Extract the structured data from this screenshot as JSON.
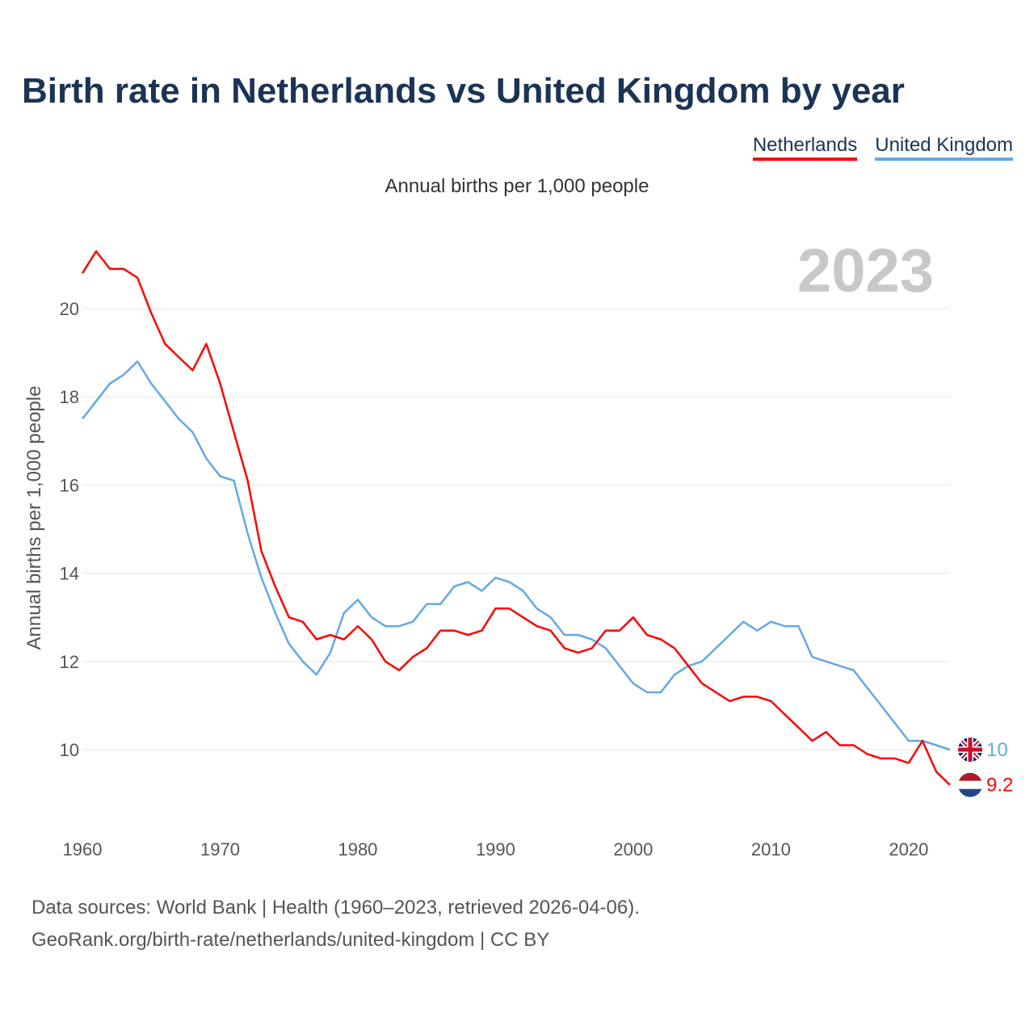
{
  "title": "Birth rate in Netherlands vs United Kingdom by year",
  "subtitle": "Annual births per 1,000 people",
  "year_label": "2023",
  "legend": [
    {
      "name": "Netherlands",
      "color": "#ff0000"
    },
    {
      "name": "United Kingdom",
      "color": "#64a8e8"
    }
  ],
  "source_line1": "Data sources: World Bank | Health (1960–2023, retrieved 2026-04-06).",
  "source_line2": "GeoRank.org/birth-rate/netherlands/united-kingdom | CC BY",
  "chart_data": {
    "type": "line",
    "title": "Birth rate in Netherlands vs United Kingdom by year",
    "xlabel": "",
    "ylabel": "Annual births per 1,000 people",
    "xlim": [
      1960,
      2023
    ],
    "ylim": [
      8.6,
      21.3
    ],
    "xticks": [
      1960,
      1970,
      1980,
      1990,
      2000,
      2010,
      2020
    ],
    "yticks": [
      10,
      12,
      14,
      16,
      18,
      20
    ],
    "grid": true,
    "legend_position": "top-right",
    "x": [
      1960,
      1961,
      1962,
      1963,
      1964,
      1965,
      1966,
      1967,
      1968,
      1969,
      1970,
      1971,
      1972,
      1973,
      1974,
      1975,
      1976,
      1977,
      1978,
      1979,
      1980,
      1981,
      1982,
      1983,
      1984,
      1985,
      1986,
      1987,
      1988,
      1989,
      1990,
      1991,
      1992,
      1993,
      1994,
      1995,
      1996,
      1997,
      1998,
      1999,
      2000,
      2001,
      2002,
      2003,
      2004,
      2005,
      2006,
      2007,
      2008,
      2009,
      2010,
      2011,
      2012,
      2013,
      2014,
      2015,
      2016,
      2017,
      2018,
      2019,
      2020,
      2021,
      2022,
      2023
    ],
    "series": [
      {
        "name": "Netherlands",
        "color": "#ff0000",
        "end_label": "9.2",
        "values": [
          20.8,
          21.3,
          20.9,
          20.9,
          20.7,
          19.9,
          19.2,
          18.9,
          18.6,
          19.2,
          18.3,
          17.2,
          16.1,
          14.5,
          13.7,
          13.0,
          12.9,
          12.5,
          12.6,
          12.5,
          12.8,
          12.5,
          12.0,
          11.8,
          12.1,
          12.3,
          12.7,
          12.7,
          12.6,
          12.7,
          13.2,
          13.2,
          13.0,
          12.8,
          12.7,
          12.3,
          12.2,
          12.3,
          12.7,
          12.7,
          13.0,
          12.6,
          12.5,
          12.3,
          11.9,
          11.5,
          11.3,
          11.1,
          11.2,
          11.2,
          11.1,
          10.8,
          10.5,
          10.2,
          10.4,
          10.1,
          10.1,
          9.9,
          9.8,
          9.8,
          9.7,
          10.2,
          9.5,
          9.2
        ]
      },
      {
        "name": "United Kingdom",
        "color": "#64a8e8",
        "end_label": "10",
        "values": [
          17.5,
          17.9,
          18.3,
          18.5,
          18.8,
          18.3,
          17.9,
          17.5,
          17.2,
          16.6,
          16.2,
          16.1,
          14.9,
          13.9,
          13.1,
          12.4,
          12.0,
          11.7,
          12.2,
          13.1,
          13.4,
          13.0,
          12.8,
          12.8,
          12.9,
          13.3,
          13.3,
          13.7,
          13.8,
          13.6,
          13.9,
          13.8,
          13.6,
          13.2,
          13.0,
          12.6,
          12.6,
          12.5,
          12.3,
          11.9,
          11.5,
          11.3,
          11.3,
          11.7,
          11.9,
          12.0,
          12.3,
          12.6,
          12.9,
          12.7,
          12.9,
          12.8,
          12.8,
          12.1,
          12.0,
          11.9,
          11.8,
          11.4,
          11.0,
          10.6,
          10.2,
          10.2,
          10.1,
          10.0
        ]
      }
    ]
  }
}
